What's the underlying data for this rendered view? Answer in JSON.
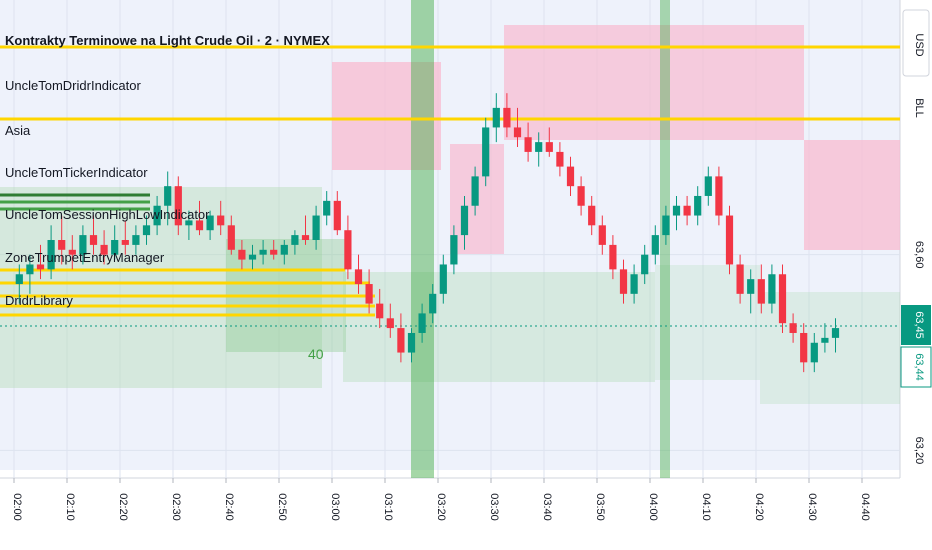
{
  "legend": {
    "title": "Kontrakty Terminowe na Light Crude Oil · 2 · NYMEX",
    "indicators": [
      "UncleTomDridrIndicator",
      "Asia",
      "UncleTomTickerIndicator",
      "UncleTomSessionHighLowIndicator",
      "ZoneTrumpetEntryManager",
      "DridrLibrary"
    ]
  },
  "zone_label": "40",
  "right_axis": {
    "currency": "USD",
    "unit": "BLL",
    "last_price_label": "63,45",
    "bid_price_label": "63,44"
  },
  "colors": {
    "background": "#eef2fb",
    "grid": "#dde3ef",
    "up": "#089981",
    "down": "#f23645",
    "session_highlight": "#4caf50",
    "level_line": "#ffd600",
    "pink_zone": "#f8bbd0",
    "green_zone": "#a5d6a7"
  },
  "chart_data": {
    "type": "candlestick",
    "title": "Kontrakty Terminowe na Light Crude Oil · 2 · NYMEX",
    "interval_minutes": 2,
    "x_ticks": [
      "02:00",
      "02:10",
      "02:20",
      "02:30",
      "02:40",
      "02:50",
      "03:00",
      "03:10",
      "03:20",
      "03:30",
      "03:40",
      "03:50",
      "04:00",
      "04:10",
      "04:20",
      "04:30",
      "04:40"
    ],
    "y_ticks": [
      {
        "value": 63.2,
        "label": "63,20"
      },
      {
        "value": 63.6,
        "label": "63,60"
      }
    ],
    "ylim": [
      63.16,
      64.1
    ],
    "last_price": 63.45,
    "bid_price": 63.44,
    "candles": [
      {
        "t": "02:00",
        "o": 63.54,
        "h": 63.58,
        "l": 63.5,
        "c": 63.56
      },
      {
        "t": "02:02",
        "o": 63.56,
        "h": 63.6,
        "l": 63.52,
        "c": 63.58
      },
      {
        "t": "02:04",
        "o": 63.58,
        "h": 63.62,
        "l": 63.55,
        "c": 63.57
      },
      {
        "t": "02:06",
        "o": 63.57,
        "h": 63.66,
        "l": 63.55,
        "c": 63.63
      },
      {
        "t": "02:08",
        "o": 63.63,
        "h": 63.68,
        "l": 63.58,
        "c": 63.61
      },
      {
        "t": "02:10",
        "o": 63.61,
        "h": 63.64,
        "l": 63.57,
        "c": 63.6
      },
      {
        "t": "02:12",
        "o": 63.6,
        "h": 63.66,
        "l": 63.58,
        "c": 63.64
      },
      {
        "t": "02:14",
        "o": 63.64,
        "h": 63.68,
        "l": 63.6,
        "c": 63.62
      },
      {
        "t": "02:16",
        "o": 63.62,
        "h": 63.65,
        "l": 63.58,
        "c": 63.6
      },
      {
        "t": "02:18",
        "o": 63.6,
        "h": 63.66,
        "l": 63.59,
        "c": 63.63
      },
      {
        "t": "02:20",
        "o": 63.63,
        "h": 63.67,
        "l": 63.6,
        "c": 63.62
      },
      {
        "t": "02:22",
        "o": 63.62,
        "h": 63.66,
        "l": 63.6,
        "c": 63.64
      },
      {
        "t": "02:24",
        "o": 63.64,
        "h": 63.68,
        "l": 63.62,
        "c": 63.66
      },
      {
        "t": "02:26",
        "o": 63.66,
        "h": 63.72,
        "l": 63.64,
        "c": 63.7
      },
      {
        "t": "02:28",
        "o": 63.7,
        "h": 63.77,
        "l": 63.66,
        "c": 63.74
      },
      {
        "t": "02:30",
        "o": 63.74,
        "h": 63.76,
        "l": 63.64,
        "c": 63.66
      },
      {
        "t": "02:32",
        "o": 63.66,
        "h": 63.69,
        "l": 63.63,
        "c": 63.67
      },
      {
        "t": "02:34",
        "o": 63.67,
        "h": 63.71,
        "l": 63.64,
        "c": 63.65
      },
      {
        "t": "02:36",
        "o": 63.65,
        "h": 63.69,
        "l": 63.63,
        "c": 63.68
      },
      {
        "t": "02:38",
        "o": 63.68,
        "h": 63.71,
        "l": 63.64,
        "c": 63.66
      },
      {
        "t": "02:40",
        "o": 63.66,
        "h": 63.68,
        "l": 63.6,
        "c": 63.61
      },
      {
        "t": "02:42",
        "o": 63.61,
        "h": 63.63,
        "l": 63.57,
        "c": 63.59
      },
      {
        "t": "02:44",
        "o": 63.59,
        "h": 63.62,
        "l": 63.57,
        "c": 63.6
      },
      {
        "t": "02:46",
        "o": 63.6,
        "h": 63.63,
        "l": 63.58,
        "c": 63.61
      },
      {
        "t": "02:48",
        "o": 63.61,
        "h": 63.63,
        "l": 63.59,
        "c": 63.6
      },
      {
        "t": "02:50",
        "o": 63.6,
        "h": 63.63,
        "l": 63.58,
        "c": 63.62
      },
      {
        "t": "02:52",
        "o": 63.62,
        "h": 63.65,
        "l": 63.6,
        "c": 63.64
      },
      {
        "t": "02:54",
        "o": 63.64,
        "h": 63.68,
        "l": 63.62,
        "c": 63.63
      },
      {
        "t": "02:56",
        "o": 63.63,
        "h": 63.7,
        "l": 63.61,
        "c": 63.68
      },
      {
        "t": "02:58",
        "o": 63.68,
        "h": 63.73,
        "l": 63.66,
        "c": 63.71
      },
      {
        "t": "03:00",
        "o": 63.71,
        "h": 63.73,
        "l": 63.64,
        "c": 63.65
      },
      {
        "t": "03:02",
        "o": 63.65,
        "h": 63.68,
        "l": 63.55,
        "c": 63.57
      },
      {
        "t": "03:04",
        "o": 63.57,
        "h": 63.6,
        "l": 63.52,
        "c": 63.54
      },
      {
        "t": "03:06",
        "o": 63.54,
        "h": 63.57,
        "l": 63.48,
        "c": 63.5
      },
      {
        "t": "03:08",
        "o": 63.5,
        "h": 63.53,
        "l": 63.45,
        "c": 63.47
      },
      {
        "t": "03:10",
        "o": 63.47,
        "h": 63.5,
        "l": 63.43,
        "c": 63.45
      },
      {
        "t": "03:12",
        "o": 63.45,
        "h": 63.48,
        "l": 63.38,
        "c": 63.4
      },
      {
        "t": "03:14",
        "o": 63.4,
        "h": 63.45,
        "l": 63.38,
        "c": 63.44
      },
      {
        "t": "03:16",
        "o": 63.44,
        "h": 63.5,
        "l": 63.42,
        "c": 63.48
      },
      {
        "t": "03:18",
        "o": 63.48,
        "h": 63.54,
        "l": 63.46,
        "c": 63.52
      },
      {
        "t": "03:20",
        "o": 63.52,
        "h": 63.6,
        "l": 63.5,
        "c": 63.58
      },
      {
        "t": "03:22",
        "o": 63.58,
        "h": 63.66,
        "l": 63.56,
        "c": 63.64
      },
      {
        "t": "03:24",
        "o": 63.64,
        "h": 63.72,
        "l": 63.61,
        "c": 63.7
      },
      {
        "t": "03:26",
        "o": 63.7,
        "h": 63.78,
        "l": 63.68,
        "c": 63.76
      },
      {
        "t": "03:28",
        "o": 63.76,
        "h": 63.88,
        "l": 63.74,
        "c": 63.86
      },
      {
        "t": "03:30",
        "o": 63.86,
        "h": 63.93,
        "l": 63.83,
        "c": 63.9
      },
      {
        "t": "03:32",
        "o": 63.9,
        "h": 63.93,
        "l": 63.84,
        "c": 63.86
      },
      {
        "t": "03:34",
        "o": 63.86,
        "h": 63.9,
        "l": 63.82,
        "c": 63.84
      },
      {
        "t": "03:36",
        "o": 63.84,
        "h": 63.87,
        "l": 63.79,
        "c": 63.81
      },
      {
        "t": "03:38",
        "o": 63.81,
        "h": 63.85,
        "l": 63.78,
        "c": 63.83
      },
      {
        "t": "03:40",
        "o": 63.83,
        "h": 63.86,
        "l": 63.8,
        "c": 63.81
      },
      {
        "t": "03:42",
        "o": 63.81,
        "h": 63.83,
        "l": 63.76,
        "c": 63.78
      },
      {
        "t": "03:44",
        "o": 63.78,
        "h": 63.8,
        "l": 63.72,
        "c": 63.74
      },
      {
        "t": "03:46",
        "o": 63.74,
        "h": 63.76,
        "l": 63.68,
        "c": 63.7
      },
      {
        "t": "03:48",
        "o": 63.7,
        "h": 63.72,
        "l": 63.64,
        "c": 63.66
      },
      {
        "t": "03:50",
        "o": 63.66,
        "h": 63.68,
        "l": 63.6,
        "c": 63.62
      },
      {
        "t": "03:52",
        "o": 63.62,
        "h": 63.64,
        "l": 63.55,
        "c": 63.57
      },
      {
        "t": "03:54",
        "o": 63.57,
        "h": 63.59,
        "l": 63.5,
        "c": 63.52
      },
      {
        "t": "03:56",
        "o": 63.52,
        "h": 63.58,
        "l": 63.5,
        "c": 63.56
      },
      {
        "t": "03:58",
        "o": 63.56,
        "h": 63.62,
        "l": 63.54,
        "c": 63.6
      },
      {
        "t": "04:00",
        "o": 63.6,
        "h": 63.66,
        "l": 63.58,
        "c": 63.64
      },
      {
        "t": "04:02",
        "o": 63.64,
        "h": 63.7,
        "l": 63.62,
        "c": 63.68
      },
      {
        "t": "04:04",
        "o": 63.68,
        "h": 63.72,
        "l": 63.65,
        "c": 63.7
      },
      {
        "t": "04:06",
        "o": 63.7,
        "h": 63.72,
        "l": 63.66,
        "c": 63.68
      },
      {
        "t": "04:08",
        "o": 63.68,
        "h": 63.74,
        "l": 63.66,
        "c": 63.72
      },
      {
        "t": "04:10",
        "o": 63.72,
        "h": 63.78,
        "l": 63.7,
        "c": 63.76
      },
      {
        "t": "04:12",
        "o": 63.76,
        "h": 63.78,
        "l": 63.66,
        "c": 63.68
      },
      {
        "t": "04:14",
        "o": 63.68,
        "h": 63.7,
        "l": 63.56,
        "c": 63.58
      },
      {
        "t": "04:16",
        "o": 63.58,
        "h": 63.6,
        "l": 63.5,
        "c": 63.52
      },
      {
        "t": "04:18",
        "o": 63.52,
        "h": 63.57,
        "l": 63.48,
        "c": 63.55
      },
      {
        "t": "04:20",
        "o": 63.55,
        "h": 63.58,
        "l": 63.48,
        "c": 63.5
      },
      {
        "t": "04:22",
        "o": 63.5,
        "h": 63.58,
        "l": 63.48,
        "c": 63.56
      },
      {
        "t": "04:24",
        "o": 63.56,
        "h": 63.58,
        "l": 63.44,
        "c": 63.46
      },
      {
        "t": "04:26",
        "o": 63.46,
        "h": 63.48,
        "l": 63.42,
        "c": 63.44
      },
      {
        "t": "04:28",
        "o": 63.44,
        "h": 63.46,
        "l": 63.36,
        "c": 63.38
      },
      {
        "t": "04:30",
        "o": 63.38,
        "h": 63.44,
        "l": 63.36,
        "c": 63.42
      },
      {
        "t": "04:32",
        "o": 63.42,
        "h": 63.46,
        "l": 63.4,
        "c": 63.43
      },
      {
        "t": "04:34",
        "o": 63.43,
        "h": 63.47,
        "l": 63.4,
        "c": 63.45
      }
    ]
  }
}
